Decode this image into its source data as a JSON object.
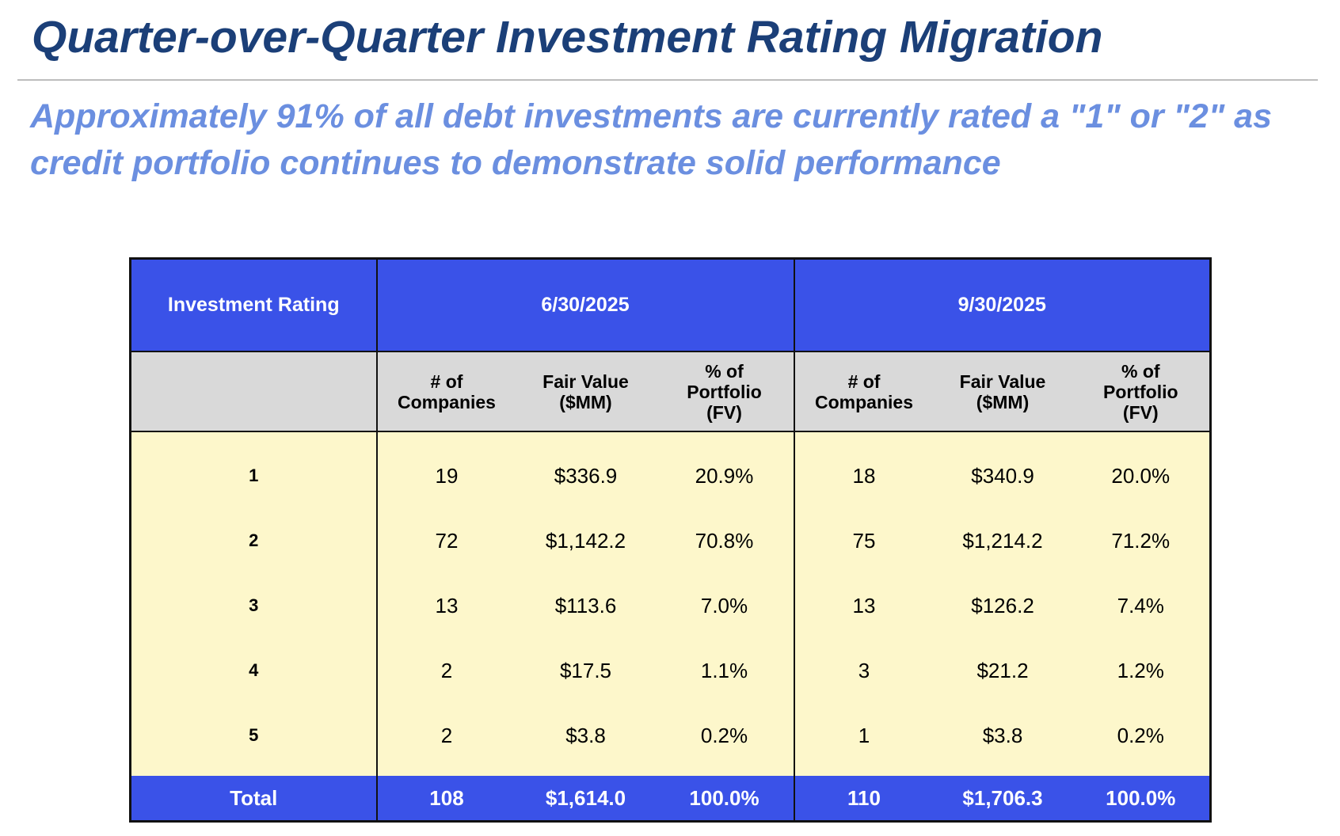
{
  "title": "Quarter-over-Quarter Investment Rating Migration",
  "subtitle": "Approximately 91% of all debt investments are currently rated a \"1\" or \"2\" as credit portfolio continues to demonstrate solid performance",
  "table": {
    "header": [
      "Investment Rating",
      "6/30/2025",
      "9/30/2025"
    ],
    "subheader": [
      "# of\nCompanies",
      "Fair Value\n($MM)",
      "% of\nPortfolio\n(FV)",
      "# of\nCompanies",
      "Fair Value\n($MM)",
      "% of\nPortfolio\n(FV)"
    ],
    "rows": [
      [
        "1",
        "19",
        "$336.9",
        "20.9%",
        "18",
        "$340.9",
        "20.0%"
      ],
      [
        "2",
        "72",
        "$1,142.2",
        "70.8%",
        "75",
        "$1,214.2",
        "71.2%"
      ],
      [
        "3",
        "13",
        "$113.6",
        "7.0%",
        "13",
        "$126.2",
        "7.4%"
      ],
      [
        "4",
        "2",
        "$17.5",
        "1.1%",
        "3",
        "$21.2",
        "1.2%"
      ],
      [
        "5",
        "2",
        "$3.8",
        "0.2%",
        "1",
        "$3.8",
        "0.2%"
      ]
    ],
    "total": [
      "Total",
      "108",
      "$1,614.0",
      "100.0%",
      "110",
      "$1,706.3",
      "100.0%"
    ]
  }
}
